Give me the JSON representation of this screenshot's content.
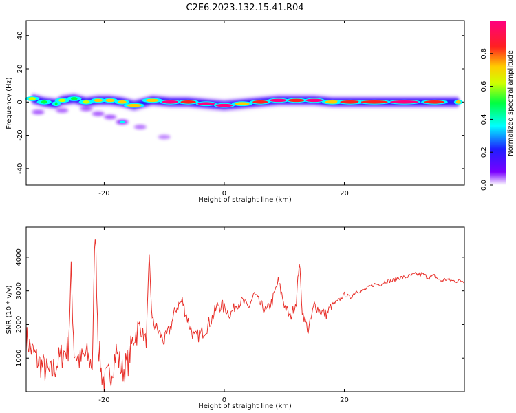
{
  "title": "C2E6.2023.132.15.41.R04",
  "colors": {
    "snr_line": "#e8312b",
    "colorbar": [
      "#ffffff",
      "#7a00ff",
      "#1e1eff",
      "#00ffff",
      "#00ff40",
      "#d0ff00",
      "#ffcc00",
      "#ff2020",
      "#ff0080"
    ]
  },
  "chart_data": [
    {
      "type": "heatmap",
      "title": "",
      "xlabel": "Height of straight line (km)",
      "ylabel": "Frequency (Hz)",
      "xlim": [
        -33,
        40
      ],
      "ylim": [
        -50,
        49
      ],
      "xticks": [
        -20,
        0,
        20
      ],
      "yticks": [
        -40,
        -20,
        0,
        20,
        40
      ],
      "colorbar": {
        "label": "Normalized spectral amplitude",
        "range": [
          0.0,
          1.0
        ],
        "ticks": [
          0.0,
          0.2,
          0.4,
          0.6,
          0.8
        ]
      },
      "ridge_samples": [
        {
          "x": -32,
          "y": 2,
          "amp": 0.6
        },
        {
          "x": -30,
          "y": 0,
          "amp": 0.5
        },
        {
          "x": -28,
          "y": -1,
          "amp": 0.45
        },
        {
          "x": -27,
          "y": 1,
          "amp": 0.6
        },
        {
          "x": -25,
          "y": 2,
          "amp": 0.55
        },
        {
          "x": -23,
          "y": 0,
          "amp": 0.6
        },
        {
          "x": -21,
          "y": 1,
          "amp": 0.7
        },
        {
          "x": -19,
          "y": 1,
          "amp": 0.75
        },
        {
          "x": -17,
          "y": 0,
          "amp": 0.7
        },
        {
          "x": -15,
          "y": -2,
          "amp": 0.8
        },
        {
          "x": -12,
          "y": 1,
          "amp": 0.7
        },
        {
          "x": -9,
          "y": 0,
          "amp": 0.95
        },
        {
          "x": -6,
          "y": 0,
          "amp": 0.85
        },
        {
          "x": -3,
          "y": -1,
          "amp": 0.95
        },
        {
          "x": 0,
          "y": -2,
          "amp": 0.95
        },
        {
          "x": 3,
          "y": -1,
          "amp": 0.8
        },
        {
          "x": 6,
          "y": 0,
          "amp": 0.85
        },
        {
          "x": 9,
          "y": 1,
          "amp": 0.95
        },
        {
          "x": 12,
          "y": 1,
          "amp": 0.9
        },
        {
          "x": 15,
          "y": 1,
          "amp": 0.95
        },
        {
          "x": 18,
          "y": 0,
          "amp": 0.8
        },
        {
          "x": 21,
          "y": 0,
          "amp": 0.85
        },
        {
          "x": 25,
          "y": 0,
          "amp": 0.9
        },
        {
          "x": 30,
          "y": 0,
          "amp": 0.95
        },
        {
          "x": 35,
          "y": 0,
          "amp": 0.85
        },
        {
          "x": 39,
          "y": 0,
          "amp": 0.8
        }
      ],
      "scatter_blobs": [
        {
          "x": -31,
          "y": -6,
          "amp": 0.3
        },
        {
          "x": -27,
          "y": -5,
          "amp": 0.25
        },
        {
          "x": -23,
          "y": -4,
          "amp": 0.3
        },
        {
          "x": -21,
          "y": -7,
          "amp": 0.3
        },
        {
          "x": -19,
          "y": -9,
          "amp": 0.3
        },
        {
          "x": -17,
          "y": -12,
          "amp": 0.45
        },
        {
          "x": -14,
          "y": -15,
          "amp": 0.2
        },
        {
          "x": -10,
          "y": -21,
          "amp": 0.12
        }
      ]
    },
    {
      "type": "line",
      "title": "",
      "xlabel": "Height of straight line (km)",
      "ylabel": "SNR (10 * v/v)",
      "xlim": [
        -33,
        40
      ],
      "ylim": [
        0,
        4900
      ],
      "xticks": [
        -20,
        0,
        20
      ],
      "yticks": [
        1000,
        2000,
        3000,
        4000
      ],
      "series": [
        {
          "x": [
            -33,
            -32,
            -31,
            -30,
            -29,
            -28,
            -27,
            -26,
            -25.5,
            -25,
            -24,
            -23,
            -22,
            -21.5,
            -21,
            -20.5,
            -20,
            -19,
            -18,
            -17,
            -16,
            -15,
            -14,
            -13,
            -12.5,
            -12,
            -11,
            -10,
            -9,
            -8,
            -7,
            -6,
            -5,
            -4,
            -3,
            -2,
            -1,
            0,
            1,
            2,
            3,
            4,
            5,
            6,
            7,
            8,
            9,
            10,
            11,
            12,
            12.5,
            13,
            14,
            15,
            16,
            17,
            18,
            19,
            20,
            21,
            22,
            23,
            24,
            25,
            26,
            27,
            28,
            29,
            30,
            31,
            32,
            33,
            34,
            35,
            36,
            37,
            38,
            39,
            40
          ],
          "y": [
            1600,
            1200,
            900,
            700,
            500,
            800,
            1100,
            1300,
            3500,
            1200,
            900,
            1100,
            800,
            4900,
            1500,
            600,
            300,
            500,
            1200,
            600,
            900,
            1700,
            1900,
            1500,
            3900,
            2100,
            1800,
            1500,
            1900,
            2500,
            2700,
            2100,
            1600,
            1700,
            1900,
            2200,
            2600,
            2500,
            2300,
            2600,
            2700,
            2500,
            2900,
            2600,
            2400,
            2700,
            3300,
            2600,
            2200,
            2700,
            3900,
            2400,
            1800,
            2600,
            2400,
            2300,
            2600,
            2700,
            2900,
            2800,
            3000,
            3000,
            3100,
            3200,
            3200,
            3300,
            3300,
            3400,
            3400,
            3450,
            3500,
            3500,
            3400,
            3450,
            3300,
            3350,
            3300,
            3300,
            3300
          ]
        }
      ]
    }
  ]
}
